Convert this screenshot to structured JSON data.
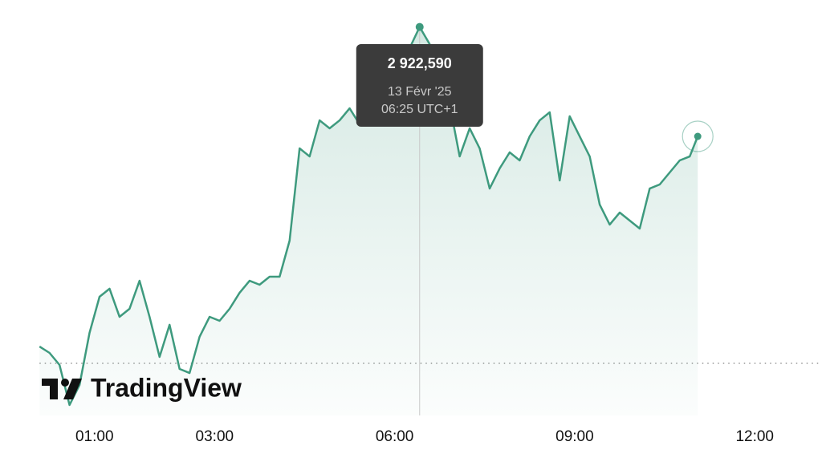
{
  "chart_data": {
    "type": "line",
    "x": [
      "00:05",
      "00:15",
      "00:25",
      "00:35",
      "00:45",
      "00:55",
      "01:05",
      "01:15",
      "01:25",
      "01:35",
      "01:45",
      "01:55",
      "02:05",
      "02:15",
      "02:25",
      "02:35",
      "02:45",
      "02:55",
      "03:05",
      "03:15",
      "03:25",
      "03:35",
      "03:45",
      "03:55",
      "04:05",
      "04:15",
      "04:25",
      "04:35",
      "04:45",
      "04:55",
      "05:05",
      "05:15",
      "05:25",
      "05:35",
      "05:45",
      "05:55",
      "06:05",
      "06:15",
      "06:25",
      "06:35",
      "06:45",
      "06:55",
      "07:05",
      "07:15",
      "07:25",
      "07:35",
      "07:45",
      "07:55",
      "08:05",
      "08:15",
      "08:25",
      "08:35",
      "08:45",
      "08:55",
      "09:05",
      "09:15",
      "09:25",
      "09:35",
      "09:45",
      "09:55",
      "10:05",
      "10:15",
      "10:25",
      "10:35",
      "10:45",
      "10:55",
      "11:03"
    ],
    "series": [
      {
        "color": "#3e9a7e",
        "values": [
          2877690,
          2876790,
          2875100,
          2869470,
          2872280,
          2879610,
          2884680,
          2885810,
          2881860,
          2882990,
          2886930,
          2881860,
          2876230,
          2880740,
          2874540,
          2873970,
          2879050,
          2881860,
          2881300,
          2882990,
          2885240,
          2886930,
          2886370,
          2887500,
          2887500,
          2892570,
          2905530,
          2904400,
          2909470,
          2908350,
          2909470,
          2911160,
          2908910,
          2911160,
          2912860,
          2913980,
          2915670,
          2919620,
          2922590,
          2920180,
          2917930,
          2911730,
          2904400,
          2908350,
          2905530,
          2899890,
          2902710,
          2904970,
          2903840,
          2907220,
          2909470,
          2910600,
          2901020,
          2910040,
          2907220,
          2904400,
          2897640,
          2894820,
          2896510,
          2895390,
          2894260,
          2899890,
          2900460,
          2902150,
          2903840,
          2904400,
          2907220
        ]
      }
    ],
    "xlim": [
      "00:00",
      "13:00"
    ],
    "xticks": [
      "01:00",
      "03:00",
      "06:00",
      "09:00",
      "12:00"
    ],
    "ylim": [
      2868000,
      2923000
    ],
    "reference": 2875330,
    "tooltip": {
      "value": 2922590,
      "label": "2 922,590",
      "date": "13 Févr '25",
      "time": "06:25 UTC+1"
    },
    "brand": "TradingView"
  }
}
